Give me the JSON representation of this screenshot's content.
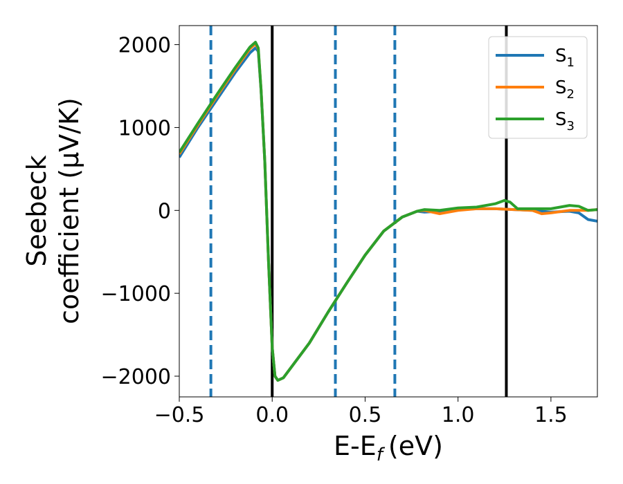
{
  "chart_data": {
    "type": "line",
    "xlabel": "E-E",
    "xlabel_sub": "f",
    "xlabel_unit": "(eV)",
    "ylabel_line1": "Seebeck",
    "ylabel_line2": "coefficient  (μV/K)",
    "xlim": [
      -0.5,
      1.75
    ],
    "ylim": [
      -2250,
      2230
    ],
    "xticks": [
      -0.5,
      0.0,
      0.5,
      1.0,
      1.5
    ],
    "xtick_labels": [
      "−0.5",
      "0.0",
      "0.5",
      "1.0",
      "1.5"
    ],
    "yticks": [
      2000,
      1000,
      0,
      -1000,
      -2000
    ],
    "ytick_labels": [
      "2000",
      "1000",
      "0",
      "−1000",
      "−2000"
    ],
    "grid": false,
    "legend_position": "top-right",
    "vlines_dashed": [
      -0.33,
      0.34,
      0.66
    ],
    "vlines_solid": [
      0.0,
      1.26
    ],
    "vline_dashed_color": "#1f77b4",
    "vline_solid_color": "#000000",
    "series": [
      {
        "name": "S",
        "name_sub": "1",
        "color": "#1f77b4",
        "points": [
          [
            -0.5,
            640
          ],
          [
            -0.4,
            1000
          ],
          [
            -0.3,
            1330
          ],
          [
            -0.2,
            1660
          ],
          [
            -0.12,
            1900
          ],
          [
            -0.09,
            1960
          ],
          [
            -0.075,
            1920
          ],
          [
            -0.06,
            1450
          ],
          [
            -0.04,
            600
          ],
          [
            -0.02,
            -600
          ],
          [
            0.0,
            -1650
          ],
          [
            0.015,
            -2000
          ],
          [
            0.03,
            -2050
          ],
          [
            0.06,
            -2020
          ],
          [
            0.1,
            -1900
          ],
          [
            0.2,
            -1600
          ],
          [
            0.3,
            -1230
          ],
          [
            0.4,
            -880
          ],
          [
            0.5,
            -540
          ],
          [
            0.6,
            -250
          ],
          [
            0.7,
            -80
          ],
          [
            0.78,
            -10
          ],
          [
            0.82,
            -20
          ],
          [
            0.9,
            -10
          ],
          [
            1.0,
            10
          ],
          [
            1.1,
            20
          ],
          [
            1.2,
            20
          ],
          [
            1.3,
            10
          ],
          [
            1.4,
            0
          ],
          [
            1.5,
            -20
          ],
          [
            1.6,
            -10
          ],
          [
            1.65,
            -30
          ],
          [
            1.7,
            -110
          ],
          [
            1.75,
            -130
          ]
        ]
      },
      {
        "name": "S",
        "name_sub": "2",
        "color": "#ff7f0e",
        "points": [
          [
            -0.5,
            680
          ],
          [
            -0.4,
            1030
          ],
          [
            -0.3,
            1370
          ],
          [
            -0.2,
            1700
          ],
          [
            -0.12,
            1950
          ],
          [
            -0.09,
            2010
          ],
          [
            -0.075,
            1950
          ],
          [
            -0.06,
            1460
          ],
          [
            -0.04,
            600
          ],
          [
            -0.02,
            -600
          ],
          [
            0.0,
            -1650
          ],
          [
            0.015,
            -2000
          ],
          [
            0.03,
            -2050
          ],
          [
            0.06,
            -2020
          ],
          [
            0.1,
            -1900
          ],
          [
            0.2,
            -1600
          ],
          [
            0.3,
            -1230
          ],
          [
            0.4,
            -880
          ],
          [
            0.5,
            -540
          ],
          [
            0.6,
            -250
          ],
          [
            0.7,
            -80
          ],
          [
            0.78,
            -10
          ],
          [
            0.82,
            0
          ],
          [
            0.9,
            -40
          ],
          [
            1.0,
            0
          ],
          [
            1.1,
            20
          ],
          [
            1.2,
            20
          ],
          [
            1.3,
            10
          ],
          [
            1.4,
            0
          ],
          [
            1.45,
            -40
          ],
          [
            1.5,
            -30
          ],
          [
            1.6,
            0
          ],
          [
            1.7,
            0
          ],
          [
            1.75,
            10
          ]
        ]
      },
      {
        "name": "S",
        "name_sub": "3",
        "color": "#2ca02c",
        "points": [
          [
            -0.5,
            700
          ],
          [
            -0.4,
            1050
          ],
          [
            -0.3,
            1390
          ],
          [
            -0.2,
            1720
          ],
          [
            -0.12,
            1970
          ],
          [
            -0.09,
            2030
          ],
          [
            -0.075,
            1960
          ],
          [
            -0.06,
            1460
          ],
          [
            -0.04,
            600
          ],
          [
            -0.02,
            -600
          ],
          [
            0.0,
            -1650
          ],
          [
            0.015,
            -2000
          ],
          [
            0.03,
            -2050
          ],
          [
            0.06,
            -2020
          ],
          [
            0.1,
            -1900
          ],
          [
            0.2,
            -1600
          ],
          [
            0.3,
            -1230
          ],
          [
            0.4,
            -880
          ],
          [
            0.5,
            -540
          ],
          [
            0.6,
            -250
          ],
          [
            0.7,
            -80
          ],
          [
            0.78,
            -10
          ],
          [
            0.82,
            10
          ],
          [
            0.9,
            0
          ],
          [
            1.0,
            30
          ],
          [
            1.1,
            40
          ],
          [
            1.2,
            80
          ],
          [
            1.25,
            120
          ],
          [
            1.28,
            100
          ],
          [
            1.32,
            20
          ],
          [
            1.4,
            20
          ],
          [
            1.5,
            20
          ],
          [
            1.6,
            60
          ],
          [
            1.65,
            50
          ],
          [
            1.7,
            0
          ],
          [
            1.75,
            10
          ]
        ]
      }
    ]
  }
}
